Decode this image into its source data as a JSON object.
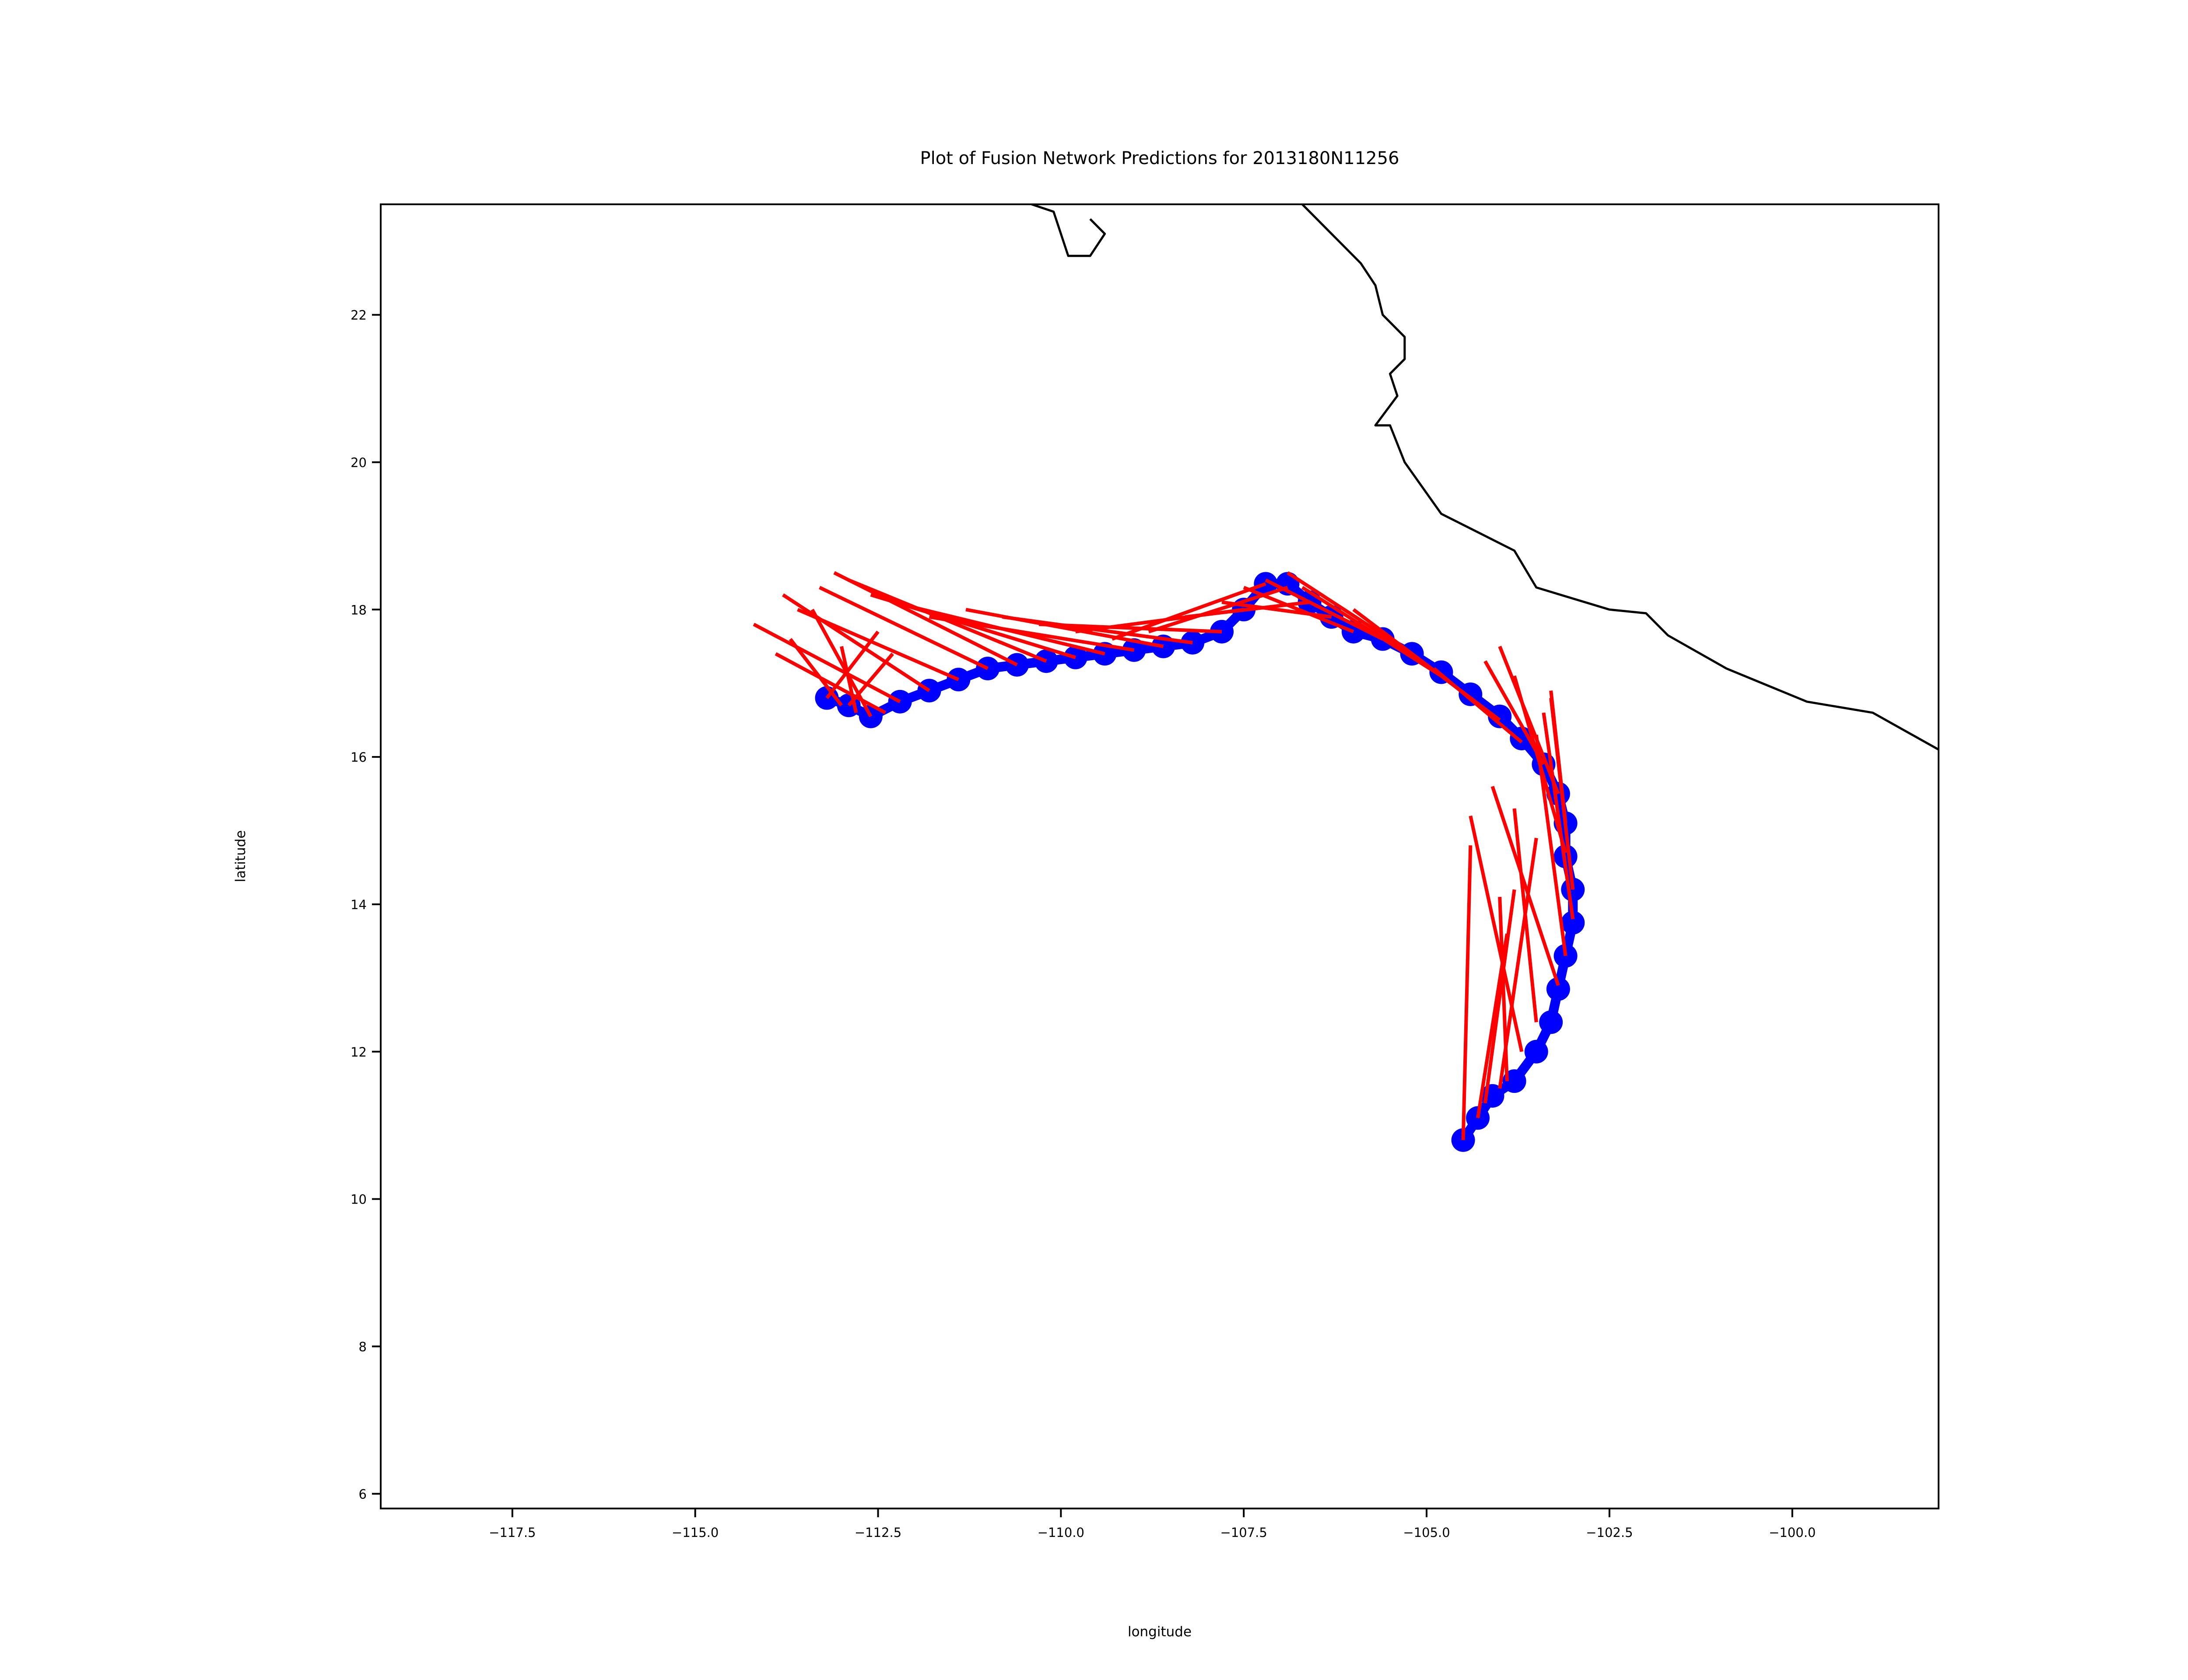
{
  "chart_data": {
    "type": "line",
    "title": "Plot of Fusion Network Predictions for 2013180N11256",
    "xlabel": "longitude",
    "ylabel": "latitude",
    "xlim": [
      -119.3,
      -98.0
    ],
    "ylim": [
      5.8,
      23.5
    ],
    "xticks": [
      -117.5,
      -115.0,
      -112.5,
      -110.0,
      -107.5,
      -105.0,
      -102.5,
      -100.0
    ],
    "xtick_labels": [
      "−117.5",
      "−115.0",
      "−112.5",
      "−110.0",
      "−107.5",
      "−105.0",
      "−102.5",
      "−100.0"
    ],
    "yticks": [
      6,
      8,
      10,
      12,
      14,
      16,
      18,
      20,
      22
    ],
    "ytick_labels": [
      "6",
      "8",
      "10",
      "12",
      "14",
      "16",
      "18",
      "20",
      "22"
    ],
    "grid": false,
    "coastline": [
      {
        "lon": [
          -110.4,
          -110.1,
          -109.9,
          -109.6,
          -109.4,
          -109.6
        ],
        "lat": [
          23.5,
          23.4,
          22.8,
          22.8,
          23.1,
          23.3
        ]
      },
      {
        "lon": [
          -106.7,
          -106.3,
          -105.9,
          -105.7,
          -105.6,
          -105.3,
          -105.3,
          -105.5,
          -105.4,
          -105.7,
          -105.5,
          -105.3,
          -104.8,
          -104.2,
          -103.8,
          -103.5,
          -102.5,
          -102.0,
          -101.7,
          -100.9,
          -99.8,
          -98.9,
          -98.0
        ],
        "lat": [
          23.5,
          23.1,
          22.7,
          22.4,
          22.0,
          21.7,
          21.4,
          21.2,
          20.9,
          20.5,
          20.5,
          20.0,
          19.3,
          19.0,
          18.8,
          18.3,
          18.0,
          17.95,
          17.65,
          17.2,
          16.75,
          16.6,
          16.1
        ]
      }
    ],
    "series": [
      {
        "name": "observed track",
        "color": "#0000ff",
        "marker": "circle",
        "lon": [
          -104.5,
          -104.3,
          -104.1,
          -103.8,
          -103.5,
          -103.3,
          -103.2,
          -103.1,
          -103.0,
          -103.0,
          -103.1,
          -103.1,
          -103.2,
          -103.4,
          -103.7,
          -104.0,
          -104.4,
          -104.8,
          -105.2,
          -105.6,
          -106.0,
          -106.3,
          -106.6,
          -106.9,
          -107.2,
          -107.5,
          -107.8,
          -108.2,
          -108.6,
          -109.0,
          -109.4,
          -109.8,
          -110.2,
          -110.6,
          -111.0,
          -111.4,
          -111.8,
          -112.2,
          -112.6,
          -112.9,
          -113.2
        ],
        "lat": [
          10.8,
          11.1,
          11.4,
          11.6,
          12.0,
          12.4,
          12.85,
          13.3,
          13.75,
          14.2,
          14.65,
          15.1,
          15.5,
          15.9,
          16.25,
          16.55,
          16.85,
          17.15,
          17.4,
          17.6,
          17.7,
          17.9,
          18.1,
          18.35,
          18.35,
          18.0,
          17.7,
          17.55,
          17.5,
          17.45,
          17.4,
          17.35,
          17.3,
          17.25,
          17.2,
          17.05,
          16.9,
          16.75,
          16.55,
          16.7,
          16.8
        ]
      },
      {
        "name": "fusion network predictions",
        "color": "#ff0000",
        "segments": [
          [
            [
              -104.5,
              10.8
            ],
            [
              -104.4,
              14.8
            ]
          ],
          [
            [
              -104.3,
              11.1
            ],
            [
              -103.9,
              13.6
            ]
          ],
          [
            [
              -104.2,
              11.3
            ],
            [
              -103.8,
              14.2
            ]
          ],
          [
            [
              -104.0,
              11.5
            ],
            [
              -103.5,
              14.9
            ]
          ],
          [
            [
              -103.9,
              11.6
            ],
            [
              -104.0,
              14.1
            ]
          ],
          [
            [
              -103.7,
              12.0
            ],
            [
              -104.4,
              15.2
            ]
          ],
          [
            [
              -103.5,
              12.4
            ],
            [
              -103.8,
              15.3
            ]
          ],
          [
            [
              -103.2,
              12.9
            ],
            [
              -104.1,
              15.6
            ]
          ],
          [
            [
              -103.1,
              13.3
            ],
            [
              -103.5,
              16.3
            ]
          ],
          [
            [
              -103.0,
              13.8
            ],
            [
              -103.4,
              16.6
            ]
          ],
          [
            [
              -103.0,
              14.2
            ],
            [
              -103.3,
              16.8
            ]
          ],
          [
            [
              -103.1,
              14.7
            ],
            [
              -103.8,
              17.1
            ]
          ],
          [
            [
              -103.1,
              15.1
            ],
            [
              -103.3,
              16.9
            ]
          ],
          [
            [
              -103.2,
              15.5
            ],
            [
              -104.0,
              17.5
            ]
          ],
          [
            [
              -103.4,
              15.9
            ],
            [
              -104.2,
              17.3
            ]
          ],
          [
            [
              -103.7,
              16.2
            ],
            [
              -104.9,
              17.2
            ]
          ],
          [
            [
              -104.0,
              16.5
            ],
            [
              -105.6,
              17.7
            ]
          ],
          [
            [
              -104.4,
              16.8
            ],
            [
              -106.0,
              18.0
            ]
          ],
          [
            [
              -104.8,
              17.1
            ],
            [
              -106.7,
              18.3
            ]
          ],
          [
            [
              -105.2,
              17.4
            ],
            [
              -106.9,
              18.5
            ]
          ],
          [
            [
              -105.6,
              17.6
            ],
            [
              -107.2,
              18.4
            ]
          ],
          [
            [
              -106.0,
              17.7
            ],
            [
              -107.5,
              18.3
            ]
          ],
          [
            [
              -106.3,
              17.9
            ],
            [
              -107.8,
              18.1
            ]
          ],
          [
            [
              -106.6,
              18.1
            ],
            [
              -108.3,
              17.9
            ]
          ],
          [
            [
              -106.9,
              18.3
            ],
            [
              -108.8,
              17.7
            ]
          ],
          [
            [
              -107.2,
              18.35
            ],
            [
              -109.3,
              17.6
            ]
          ],
          [
            [
              -107.5,
              18.0
            ],
            [
              -109.8,
              17.7
            ]
          ],
          [
            [
              -107.8,
              17.7
            ],
            [
              -110.3,
              17.8
            ]
          ],
          [
            [
              -108.2,
              17.55
            ],
            [
              -110.8,
              17.9
            ]
          ],
          [
            [
              -108.6,
              17.5
            ],
            [
              -111.3,
              18.0
            ]
          ],
          [
            [
              -109.0,
              17.45
            ],
            [
              -111.8,
              17.9
            ]
          ],
          [
            [
              -109.4,
              17.4
            ],
            [
              -112.3,
              18.1
            ]
          ],
          [
            [
              -109.8,
              17.35
            ],
            [
              -112.6,
              18.2
            ]
          ],
          [
            [
              -110.2,
              17.3
            ],
            [
              -112.9,
              18.4
            ]
          ],
          [
            [
              -110.6,
              17.25
            ],
            [
              -113.1,
              18.5
            ]
          ],
          [
            [
              -111.0,
              17.2
            ],
            [
              -113.3,
              18.3
            ]
          ],
          [
            [
              -111.4,
              17.05
            ],
            [
              -113.6,
              18.0
            ]
          ],
          [
            [
              -111.8,
              16.9
            ],
            [
              -113.8,
              18.2
            ]
          ],
          [
            [
              -112.2,
              16.75
            ],
            [
              -114.2,
              17.8
            ]
          ],
          [
            [
              -112.4,
              16.6
            ],
            [
              -113.9,
              17.4
            ]
          ],
          [
            [
              -112.6,
              16.55
            ],
            [
              -113.4,
              18.0
            ]
          ],
          [
            [
              -112.8,
              16.6
            ],
            [
              -113.0,
              17.5
            ]
          ],
          [
            [
              -113.0,
              16.7
            ],
            [
              -113.7,
              17.6
            ]
          ],
          [
            [
              -113.2,
              16.8
            ],
            [
              -112.5,
              17.7
            ]
          ],
          [
            [
              -112.9,
              16.7
            ],
            [
              -112.3,
              17.4
            ]
          ]
        ]
      }
    ]
  }
}
